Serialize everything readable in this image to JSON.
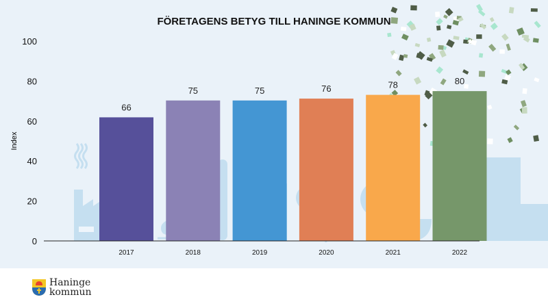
{
  "chart_data": {
    "type": "bar",
    "title": "FÖRETAGENS BETYG TILL HANINGE KOMMUN",
    "ylabel": "Index",
    "xlabel": "",
    "categories": [
      "2017",
      "2018",
      "2019",
      "2020",
      "2021",
      "2022"
    ],
    "values": [
      66,
      75,
      75,
      76,
      78,
      80
    ],
    "data_labels": [
      "66",
      "75",
      "75",
      "76",
      "78",
      "80"
    ],
    "ylim": [
      0,
      100
    ],
    "yticks": [
      "0",
      "20",
      "40",
      "60",
      "80",
      "100"
    ],
    "grid": false,
    "colors": [
      "#56509a",
      "#8b82b5",
      "#4496d3",
      "#e07f55",
      "#f9a84b",
      "#76976a"
    ]
  },
  "logo": {
    "line1": "Haninge",
    "line2": "kommun"
  }
}
